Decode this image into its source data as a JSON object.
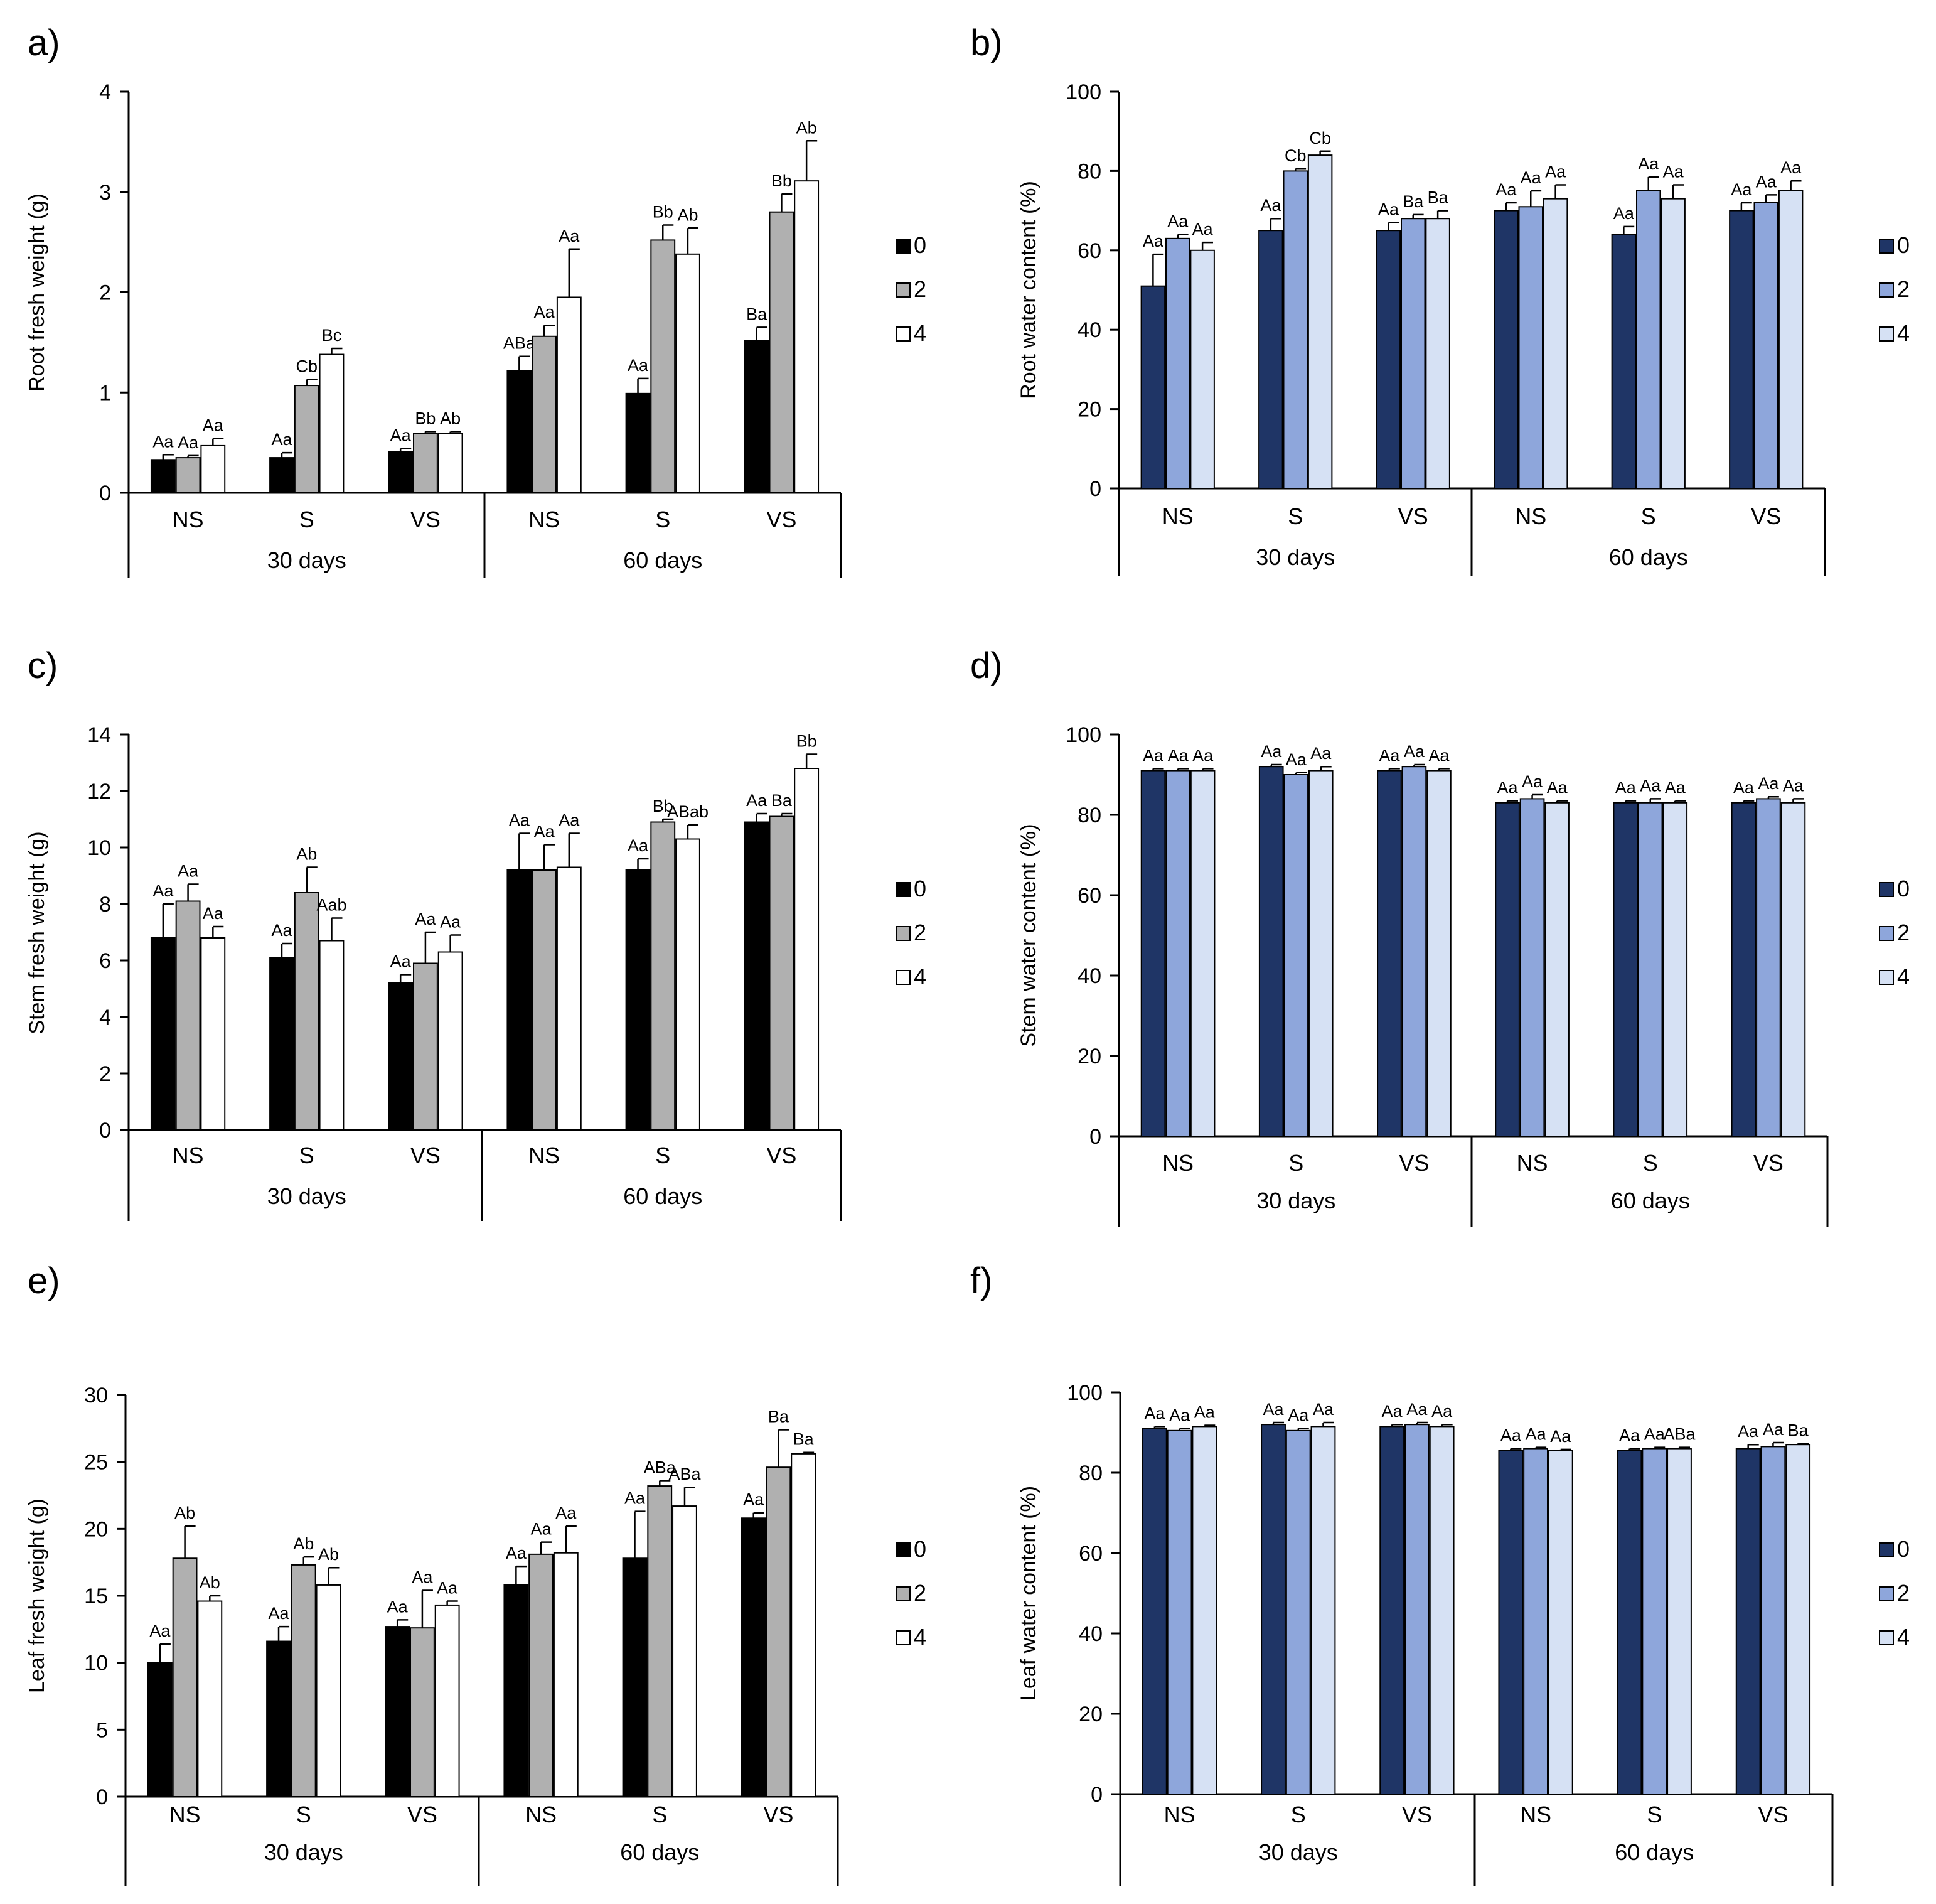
{
  "chart_data": [
    {
      "panel_label": "a)",
      "type": "bar",
      "ylabel": "Root fresh weight (g)",
      "ylim": [
        0,
        4
      ],
      "yticks": [
        0,
        1,
        2,
        3,
        4
      ],
      "groups": [
        "30 days",
        "60 days"
      ],
      "categories": [
        "NS",
        "S",
        "VS",
        "NS",
        "S",
        "VS"
      ],
      "legend": [
        "0",
        "2",
        "4"
      ],
      "palette": "gray",
      "series": [
        {
          "values": [
            0.33,
            0.35,
            0.41,
            1.22,
            0.99,
            1.52
          ],
          "errors": [
            0.05,
            0.05,
            0.03,
            0.14,
            0.15,
            0.13
          ],
          "labels": [
            "Aa",
            "Aa",
            "Aa",
            "ABa",
            "Aa",
            "Ba"
          ]
        },
        {
          "values": [
            0.35,
            1.07,
            0.59,
            1.56,
            2.52,
            2.8
          ],
          "errors": [
            0.02,
            0.06,
            0.02,
            0.11,
            0.15,
            0.18
          ],
          "labels": [
            "Aa",
            "Cb",
            "Bb",
            "Aa",
            "Bb",
            "Bb"
          ]
        },
        {
          "values": [
            0.47,
            1.38,
            0.59,
            1.95,
            2.38,
            3.11
          ],
          "errors": [
            0.07,
            0.06,
            0.02,
            0.48,
            0.26,
            0.4
          ],
          "labels": [
            "Aa",
            "Bc",
            "Ab",
            "Aa",
            "Ab",
            "Ab"
          ]
        }
      ]
    },
    {
      "panel_label": "b)",
      "type": "bar",
      "ylabel": "Root water content (%)",
      "ylim": [
        0,
        100
      ],
      "yticks": [
        0,
        20,
        40,
        60,
        80,
        100
      ],
      "groups": [
        "30 days",
        "60 days"
      ],
      "categories": [
        "NS",
        "S",
        "VS",
        "NS",
        "S",
        "VS"
      ],
      "legend": [
        "0",
        "2",
        "4"
      ],
      "palette": "blue",
      "series": [
        {
          "values": [
            51,
            65,
            65,
            70,
            64,
            70
          ],
          "errors": [
            8,
            3,
            2,
            2,
            2,
            2
          ],
          "labels": [
            "Aa",
            "Aa",
            "Aa",
            "Aa",
            "Aa",
            "Aa"
          ]
        },
        {
          "values": [
            63,
            80,
            68,
            71,
            75,
            72
          ],
          "errors": [
            1,
            0.5,
            1,
            4,
            3.5,
            2
          ],
          "labels": [
            "Aa",
            "Cb",
            "Ba",
            "Aa",
            "Aa",
            "Aa"
          ]
        },
        {
          "values": [
            60,
            84,
            68,
            73,
            73,
            75
          ],
          "errors": [
            2,
            1,
            2,
            3.5,
            3.5,
            2.5
          ],
          "labels": [
            "Aa",
            "Cb",
            "Ba",
            "Aa",
            "Aa",
            "Aa"
          ]
        }
      ]
    },
    {
      "panel_label": "c)",
      "type": "bar",
      "ylabel": "Stem fresh weight (g)",
      "ylim": [
        0,
        14
      ],
      "yticks": [
        0,
        2,
        4,
        6,
        8,
        10,
        12,
        14
      ],
      "groups": [
        "30 days",
        "60 days"
      ],
      "categories": [
        "NS",
        "S",
        "VS",
        "NS",
        "S",
        "VS"
      ],
      "legend": [
        "0",
        "2",
        "4"
      ],
      "palette": "gray",
      "series": [
        {
          "values": [
            6.8,
            6.1,
            5.2,
            9.2,
            9.2,
            10.9
          ],
          "errors": [
            1.2,
            0.5,
            0.3,
            1.3,
            0.4,
            0.3
          ],
          "labels": [
            "Aa",
            "Aa",
            "Aa",
            "Aa",
            "Aa",
            "Aa"
          ]
        },
        {
          "values": [
            8.1,
            8.4,
            5.9,
            9.2,
            10.9,
            11.1
          ],
          "errors": [
            0.6,
            0.9,
            1.1,
            0.9,
            0.1,
            0.1
          ],
          "labels": [
            "Aa",
            "Ab",
            "Aa",
            "Aa",
            "Bb",
            "Ba"
          ]
        },
        {
          "values": [
            6.8,
            6.7,
            6.3,
            9.3,
            10.3,
            12.8
          ],
          "errors": [
            0.4,
            0.8,
            0.6,
            1.2,
            0.5,
            0.5
          ],
          "labels": [
            "Aa",
            "Aab",
            "Aa",
            "Aa",
            "ABab",
            "Bb"
          ]
        }
      ]
    },
    {
      "panel_label": "d)",
      "type": "bar",
      "ylabel": "Stem water content (%)",
      "ylim": [
        0,
        100
      ],
      "yticks": [
        0,
        20,
        40,
        60,
        80,
        100
      ],
      "groups": [
        "30 days",
        "60 days"
      ],
      "categories": [
        "NS",
        "S",
        "VS",
        "NS",
        "S",
        "VS"
      ],
      "legend": [
        "0",
        "2",
        "4"
      ],
      "palette": "blue",
      "series": [
        {
          "values": [
            91,
            92,
            91,
            83,
            83,
            83
          ],
          "errors": [
            0.5,
            0.5,
            0.5,
            0.5,
            0.5,
            0.5
          ],
          "labels": [
            "Aa",
            "Aa",
            "Aa",
            "Aa",
            "Aa",
            "Aa"
          ]
        },
        {
          "values": [
            91,
            90,
            92,
            84,
            83,
            84
          ],
          "errors": [
            0.5,
            0.5,
            0.5,
            1,
            1,
            0.5
          ],
          "labels": [
            "Aa",
            "Aa",
            "Aa",
            "Aa",
            "Aa",
            "Aa"
          ]
        },
        {
          "values": [
            91,
            91,
            91,
            83,
            83,
            83
          ],
          "errors": [
            0.5,
            1,
            0.5,
            0.5,
            0.5,
            1
          ],
          "labels": [
            "Aa",
            "Aa",
            "Aa",
            "Aa",
            "Aa",
            "Aa"
          ]
        }
      ]
    },
    {
      "panel_label": "e)",
      "type": "bar",
      "ylabel": "Leaf fresh weight (g)",
      "ylim": [
        0,
        30
      ],
      "yticks": [
        0,
        5,
        10,
        15,
        20,
        25,
        30
      ],
      "groups": [
        "30 days",
        "60 days"
      ],
      "categories": [
        "NS",
        "S",
        "VS",
        "NS",
        "S",
        "VS"
      ],
      "legend": [
        "0",
        "2",
        "4"
      ],
      "palette": "gray",
      "series": [
        {
          "values": [
            10.0,
            11.6,
            12.7,
            15.8,
            17.8,
            20.8
          ],
          "errors": [
            1.4,
            1.1,
            0.5,
            1.4,
            3.5,
            0.4
          ],
          "labels": [
            "Aa",
            "Aa",
            "Aa",
            "Aa",
            "Aa",
            "Aa"
          ]
        },
        {
          "values": [
            17.8,
            17.3,
            12.6,
            18.1,
            23.2,
            24.6
          ],
          "errors": [
            2.4,
            0.6,
            2.8,
            0.9,
            0.4,
            2.8
          ],
          "labels": [
            "Ab",
            "Ab",
            "Aa",
            "Aa",
            "ABa",
            "Ba"
          ]
        },
        {
          "values": [
            14.6,
            15.8,
            14.3,
            18.2,
            21.7,
            25.6
          ],
          "errors": [
            0.4,
            1.3,
            0.3,
            2.0,
            1.4,
            0.1
          ],
          "labels": [
            "Ab",
            "Ab",
            "Aa",
            "Aa",
            "ABa",
            "Ba"
          ]
        }
      ]
    },
    {
      "panel_label": "f)",
      "type": "bar",
      "ylabel": "Leaf water content (%)",
      "ylim": [
        0,
        100
      ],
      "yticks": [
        0,
        20,
        40,
        60,
        80,
        100
      ],
      "groups": [
        "30 days",
        "60 days"
      ],
      "categories": [
        "NS",
        "S",
        "VS",
        "NS",
        "S",
        "VS"
      ],
      "legend": [
        "0",
        "2",
        "4"
      ],
      "palette": "blue",
      "series": [
        {
          "values": [
            91,
            92,
            91.5,
            85.5,
            85.5,
            86
          ],
          "errors": [
            0.5,
            0.5,
            0.5,
            0.5,
            0.5,
            1
          ],
          "labels": [
            "Aa",
            "Aa",
            "Aa",
            "Aa",
            "Aa",
            "Aa"
          ]
        },
        {
          "values": [
            90.5,
            90.5,
            92,
            86,
            86,
            86.5
          ],
          "errors": [
            0.5,
            0.5,
            0.5,
            0.3,
            0.3,
            1
          ],
          "labels": [
            "Aa",
            "Aa",
            "Aa",
            "Aa",
            "Aa",
            "Aa"
          ]
        },
        {
          "values": [
            91.5,
            91.5,
            91.5,
            85.5,
            86,
            87
          ],
          "errors": [
            0.3,
            1,
            0.5,
            0.3,
            0.3,
            0.3
          ],
          "labels": [
            "Aa",
            "Aa",
            "Aa",
            "Aa",
            "ABa",
            "Ba"
          ]
        }
      ]
    }
  ],
  "palettes": {
    "gray": [
      "#000000",
      "#b0b0b0",
      "#ffffff"
    ],
    "blue": [
      "#1f3566",
      "#8ea6db",
      "#d6e1f4"
    ]
  }
}
